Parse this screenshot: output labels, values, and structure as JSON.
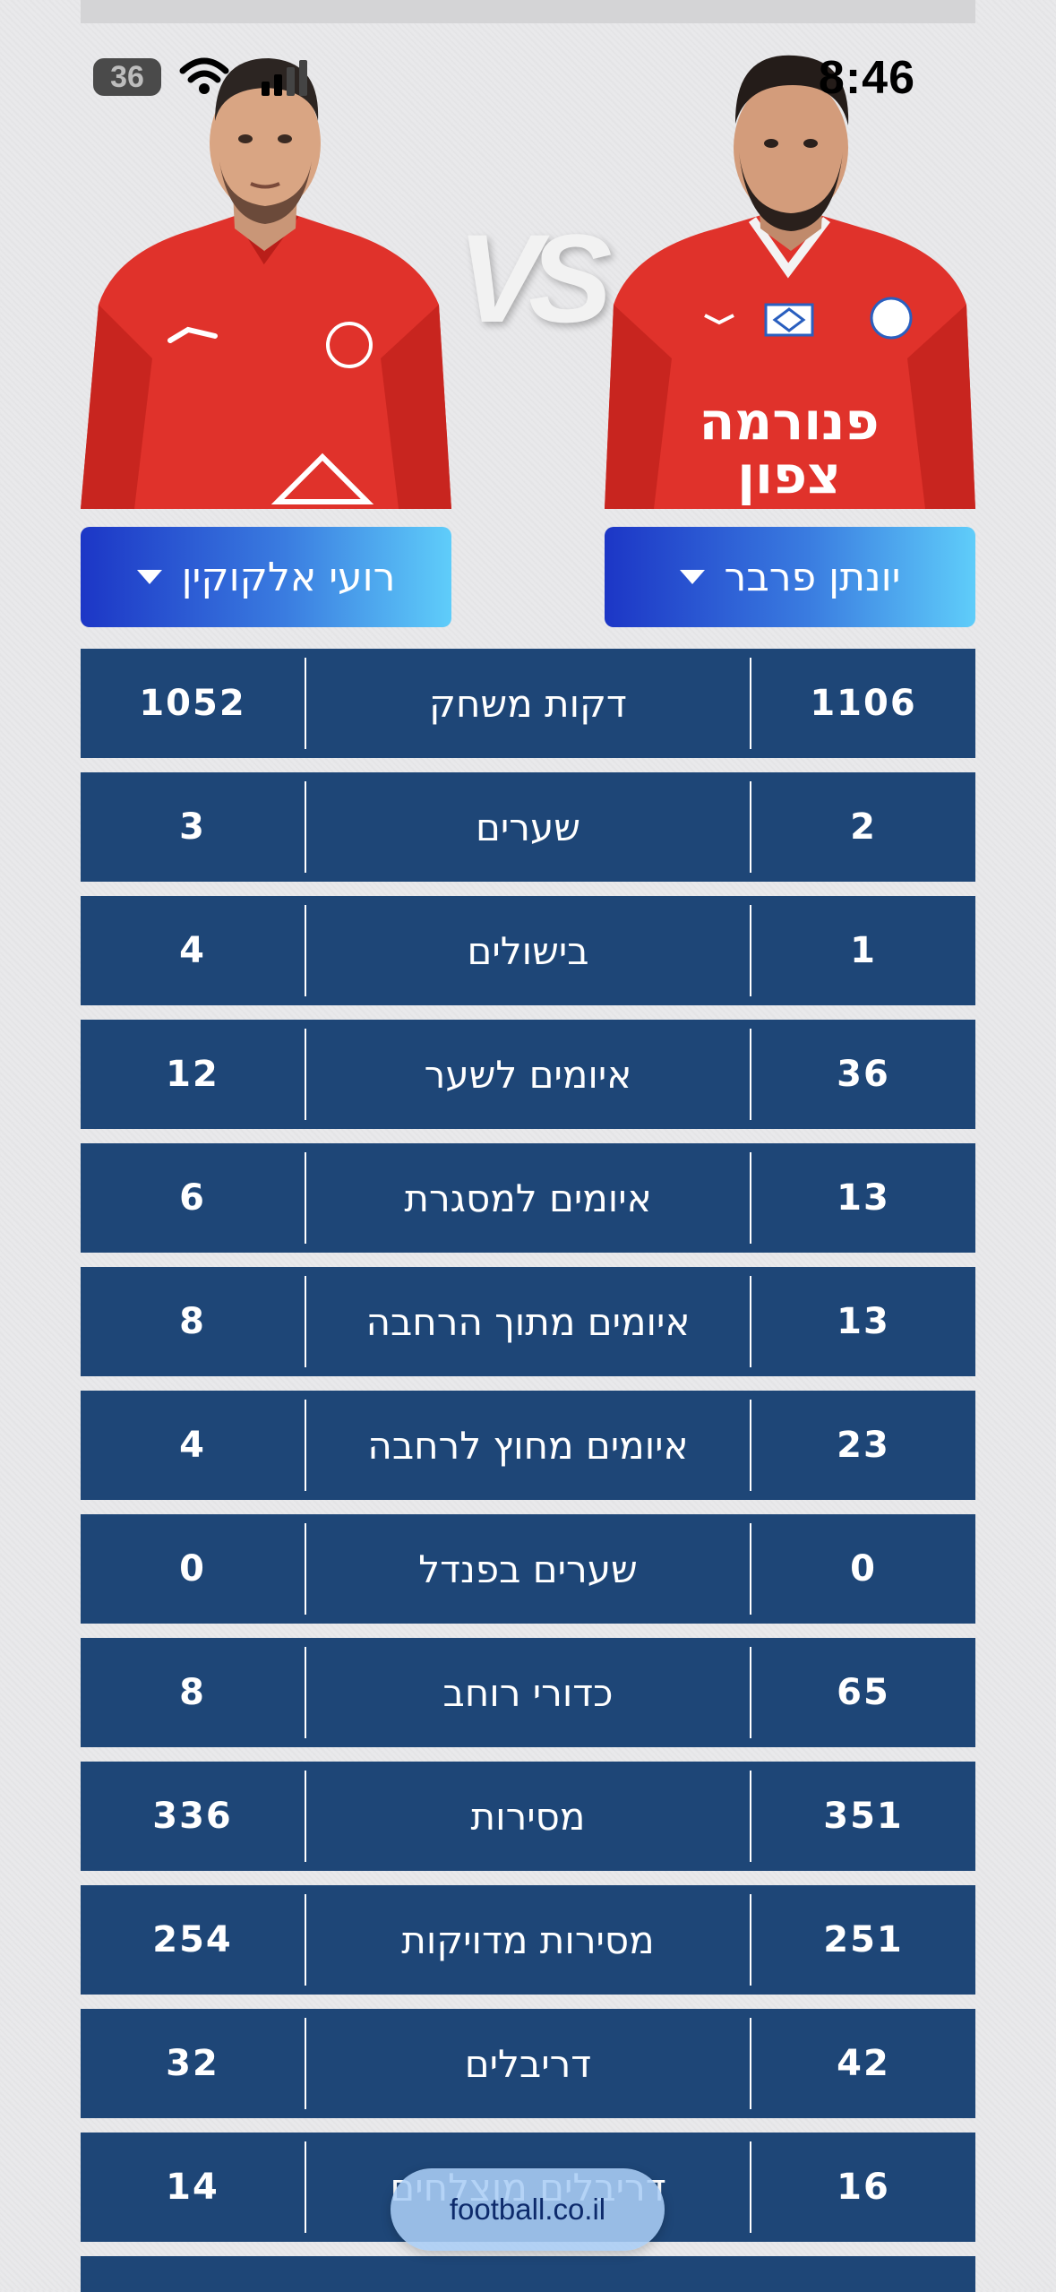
{
  "status_bar": {
    "time": "8:46",
    "battery": "36"
  },
  "comparison": {
    "vs_text": "VS"
  },
  "players": {
    "right": {
      "name": "יונתן פרבר",
      "jersey_text_line1": "פנורמה",
      "jersey_text_line2": "צפון"
    },
    "left": {
      "name": "רועי אלקוקין"
    }
  },
  "stats": [
    {
      "label": "דקות משחק",
      "right": "1106",
      "left": "1052"
    },
    {
      "label": "שערים",
      "right": "2",
      "left": "3"
    },
    {
      "label": "בישולים",
      "right": "1",
      "left": "4"
    },
    {
      "label": "איומים לשער",
      "right": "36",
      "left": "12"
    },
    {
      "label": "איומים למסגרת",
      "right": "13",
      "left": "6"
    },
    {
      "label": "איומים מתוך הרחבה",
      "right": "13",
      "left": "8"
    },
    {
      "label": "איומים מחוץ לרחבה",
      "right": "23",
      "left": "4"
    },
    {
      "label": "שערים בפנדל",
      "right": "0",
      "left": "0"
    },
    {
      "label": "כדורי רוחב",
      "right": "65",
      "left": "8"
    },
    {
      "label": "מסירות",
      "right": "351",
      "left": "336"
    },
    {
      "label": "מסירות מדויקות",
      "right": "251",
      "left": "254"
    },
    {
      "label": "דריבלים",
      "right": "42",
      "left": "32"
    },
    {
      "label": "דריבלים מוצלחים",
      "right": "16",
      "left": "14"
    }
  ],
  "watermark": "football.co.il",
  "colors": {
    "row_bg": "#1e4677",
    "button_start": "#1c36c6",
    "button_end": "#5fcdfa",
    "jersey_red": "#e0322b"
  }
}
